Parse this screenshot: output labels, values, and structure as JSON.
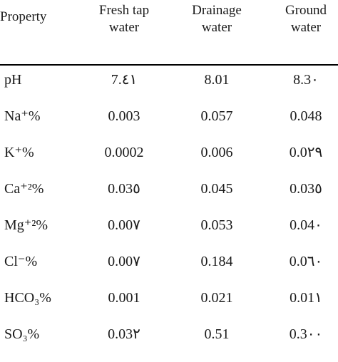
{
  "table": {
    "headers": {
      "property": "Property",
      "col1": [
        "Fresh tap",
        "water"
      ],
      "col2": [
        "Drainage",
        "water"
      ],
      "col3": [
        "Ground",
        "water"
      ]
    },
    "rows": [
      {
        "property": "pH",
        "fresh": "7.٤١",
        "drainage": "8.01",
        "ground": "8.3٠"
      },
      {
        "property": "Na⁺%",
        "fresh": "0.003",
        "drainage": "0.057",
        "ground": "0.048"
      },
      {
        "property": "K⁺%",
        "fresh": "0.0002",
        "drainage": "0.006",
        "ground": "0.0٢٩"
      },
      {
        "property": "Ca⁺²%",
        "fresh": "0.03٥",
        "drainage": "0.045",
        "ground": "0.03٥"
      },
      {
        "property": "Mg⁺²%",
        "fresh": "0.00٧",
        "drainage": "0.053",
        "ground": "0.04٠"
      },
      {
        "property": "Cl⁻%",
        "fresh": "0.00٧",
        "drainage": "0.184",
        "ground": "0.0٦٠"
      },
      {
        "property": "HCO₃%",
        "fresh": "0.001",
        "drainage": "0.021",
        "ground": "0.01١"
      },
      {
        "property": "SO₃%",
        "fresh": "0.03٢",
        "drainage": "0.51",
        "ground": "0.3٠٠"
      }
    ]
  }
}
